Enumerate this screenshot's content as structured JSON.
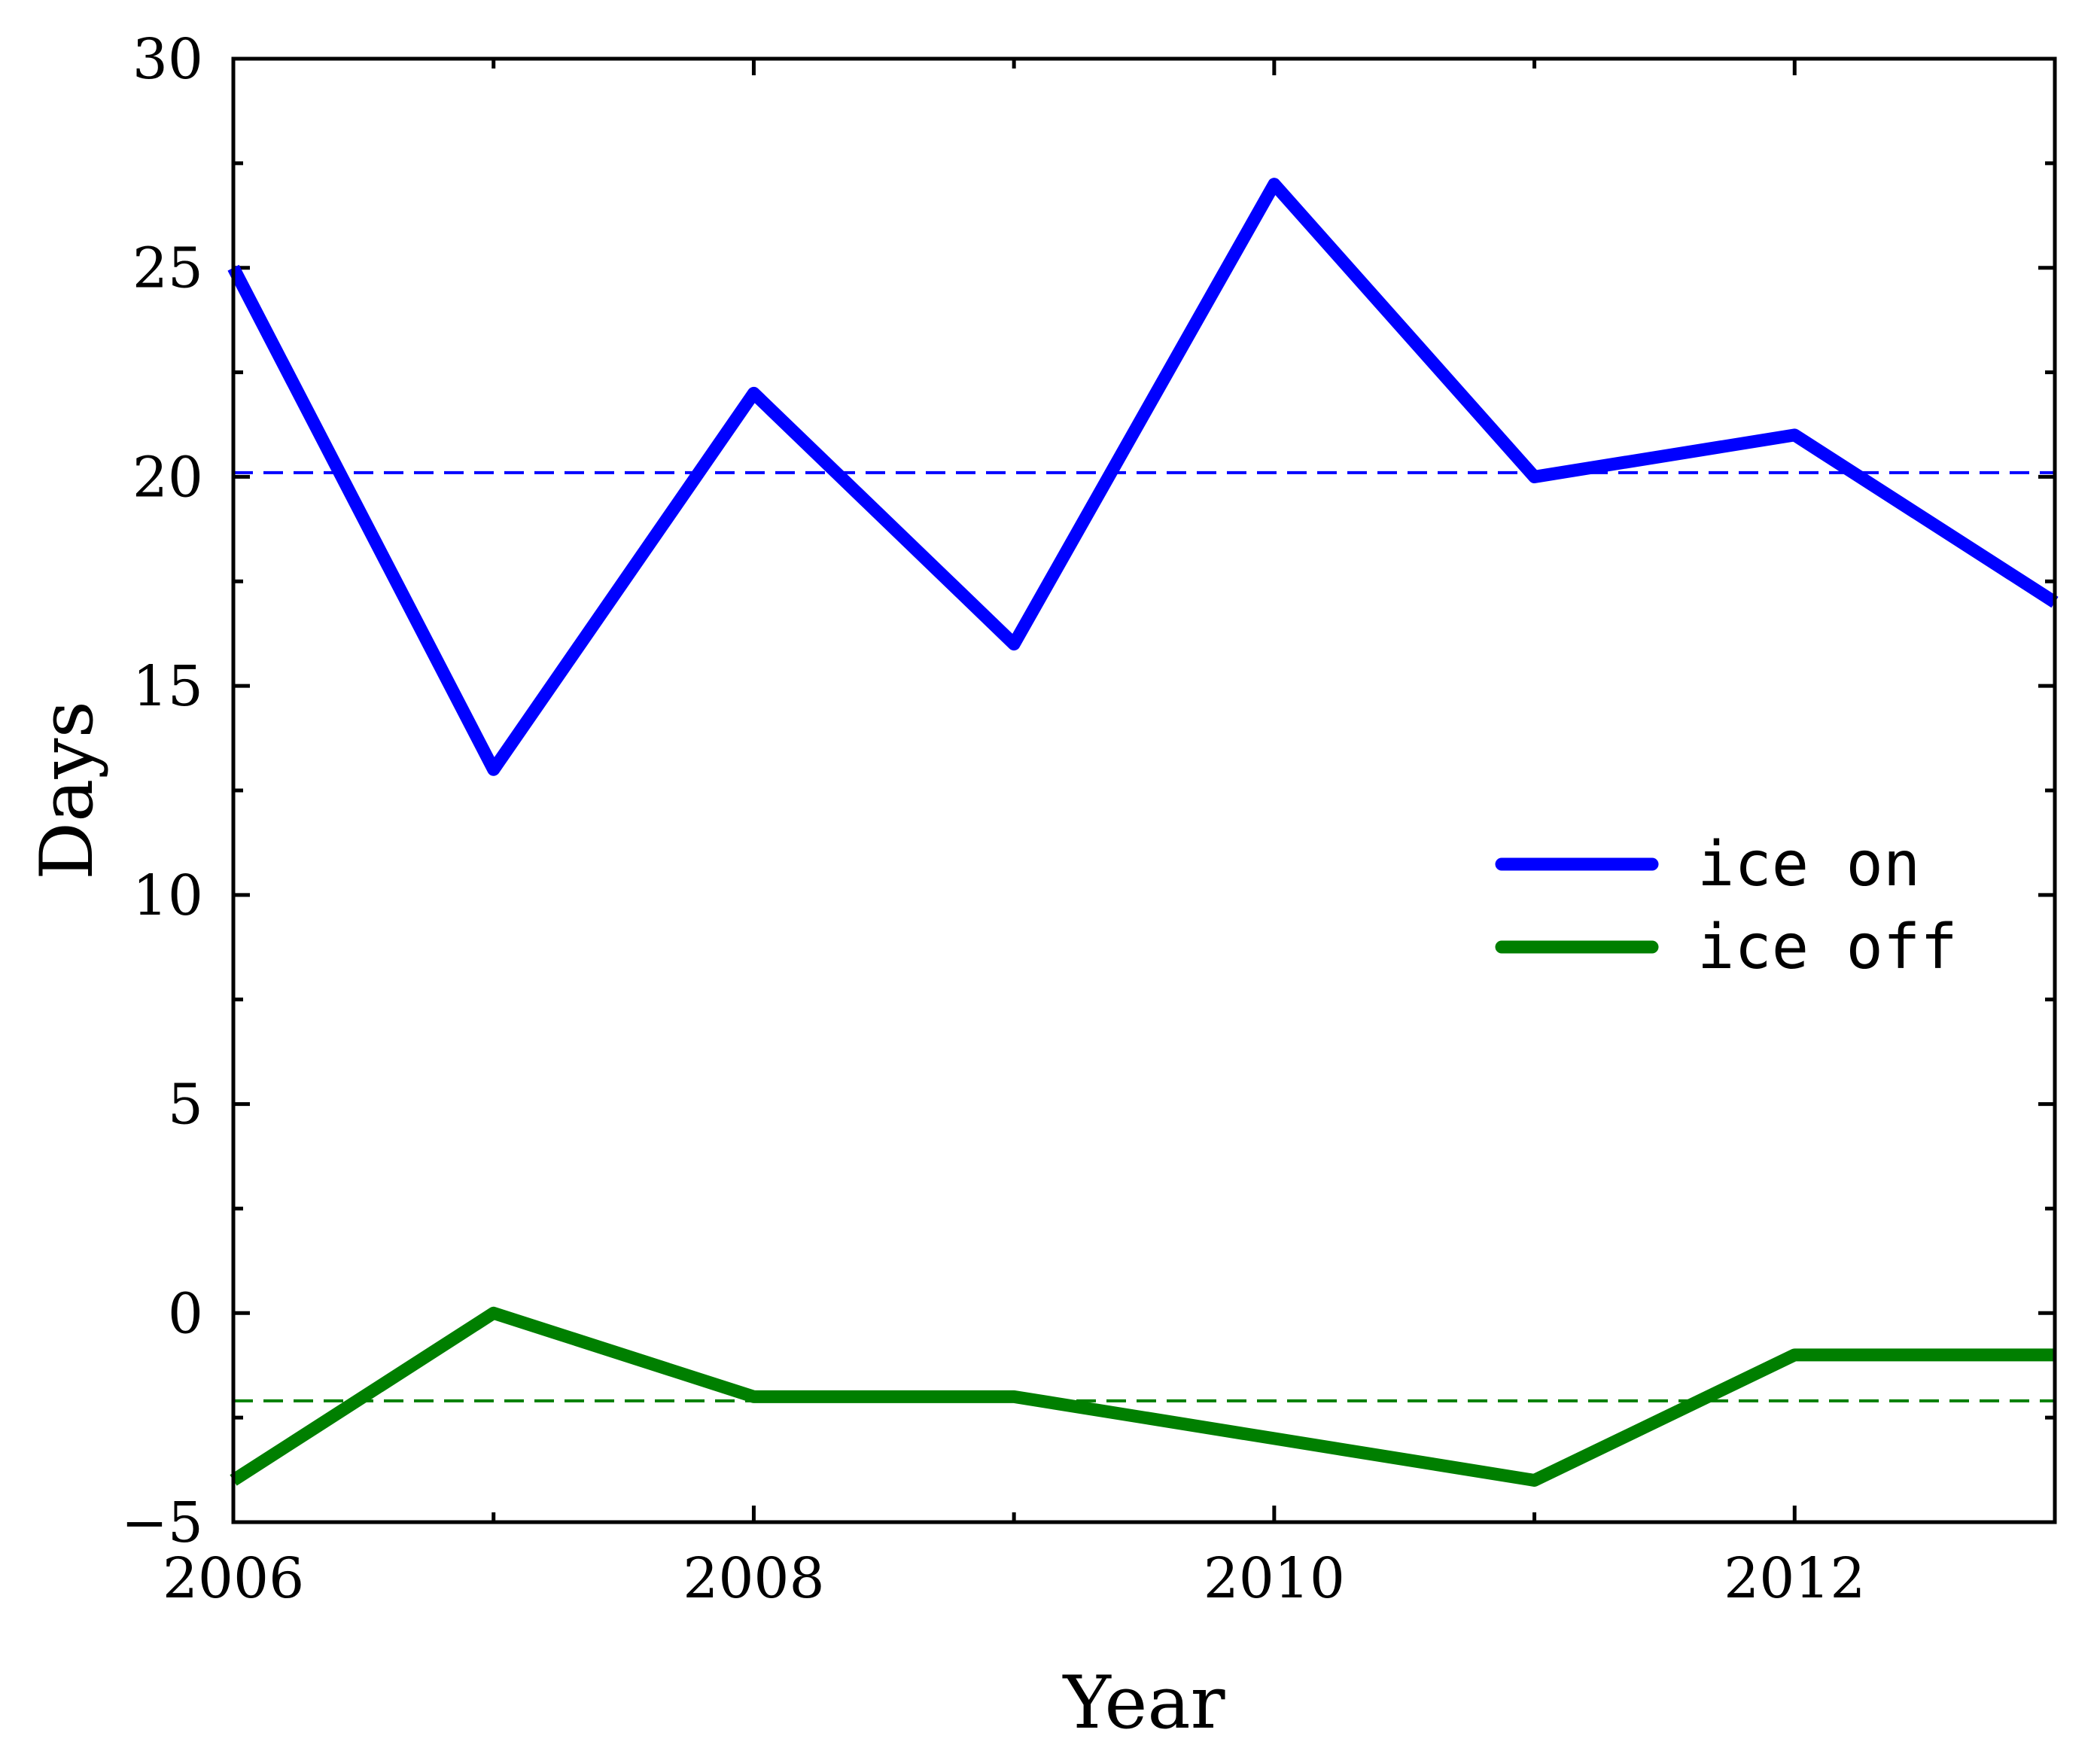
{
  "chart_data": {
    "type": "line",
    "title": "",
    "xlabel": "Year",
    "ylabel": "Days",
    "xlim": [
      2006,
      2013
    ],
    "ylim": [
      -5,
      30
    ],
    "x_ticks": [
      2006,
      2008,
      2010,
      2012
    ],
    "x_tick_labels": [
      "2006",
      "2008",
      "2010",
      "2012"
    ],
    "y_ticks": [
      -5,
      0,
      5,
      10,
      15,
      20,
      25,
      30
    ],
    "y_tick_labels": [
      "−5",
      "0",
      "5",
      "10",
      "15",
      "20",
      "25",
      "30"
    ],
    "x": [
      2006,
      2007,
      2008,
      2009,
      2010,
      2011,
      2012,
      2013
    ],
    "series": [
      {
        "name": "ice on",
        "color": "#0000ff",
        "values": [
          25,
          13,
          22,
          16,
          27,
          20,
          21,
          17
        ],
        "mean": 20.1
      },
      {
        "name": "ice off",
        "color": "#007f00",
        "values": [
          -4,
          0,
          -2,
          -2,
          -3,
          -4,
          -1,
          -1
        ],
        "mean": -2.1
      }
    ],
    "legend": {
      "position": "center-right",
      "entries": [
        "ice on",
        "ice off"
      ]
    },
    "grid": false
  }
}
